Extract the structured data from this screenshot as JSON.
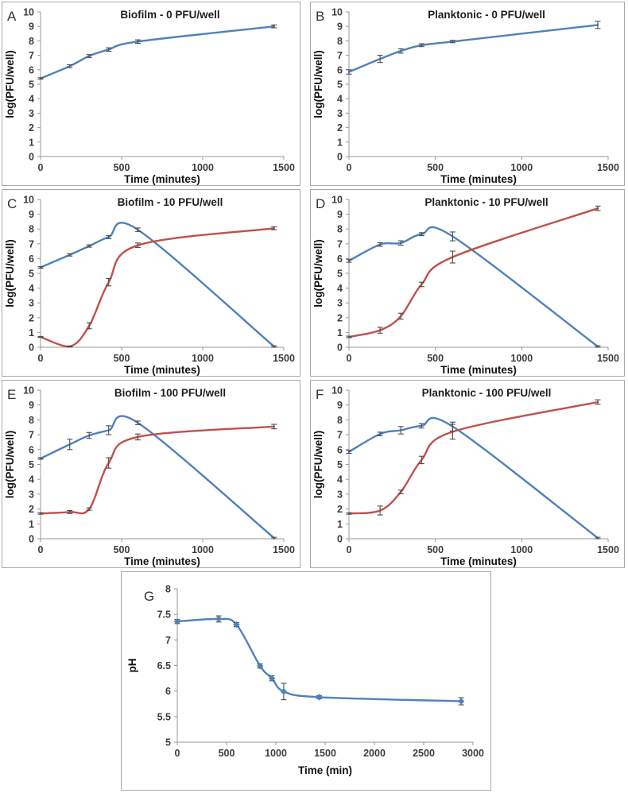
{
  "figure": {
    "background": "#ffffff",
    "panel_border_color": "#a9a9a9",
    "axis_color": "#999999",
    "tick_label_color": "#3d3d3d",
    "title_color": "#1f1f1f",
    "error_bar_color": "#4a4a4a",
    "series_colors": {
      "bacteria": "#4F81BD",
      "phage": "#C0504D"
    }
  },
  "chart_data": [
    {
      "id": "A",
      "panel_letter": "A",
      "type": "line",
      "title": "Biofilm - 0 PFU/well",
      "xlabel": "Time (minutes)",
      "ylabel": "log(PFU/well)",
      "xlim": [
        0,
        1500
      ],
      "ylim": [
        0,
        10
      ],
      "xticks": [
        0,
        500,
        1000,
        1500
      ],
      "yticks": [
        0,
        1,
        2,
        3,
        4,
        5,
        6,
        7,
        8,
        9,
        10
      ],
      "grid": false,
      "legend": "none",
      "series": [
        {
          "name": "bacteria",
          "color": "#4F81BD",
          "marker": "none",
          "x": [
            0,
            180,
            300,
            420,
            600,
            1440
          ],
          "y": [
            5.4,
            6.25,
            6.95,
            7.4,
            7.95,
            9.0
          ],
          "yerr": [
            0.05,
            0.1,
            0.1,
            0.12,
            0.12,
            0.1
          ]
        }
      ]
    },
    {
      "id": "B",
      "panel_letter": "B",
      "type": "line",
      "title": "Planktonic - 0 PFU/well",
      "xlabel": "Time (minutes)",
      "ylabel": "log(PFU/well)",
      "xlim": [
        0,
        1500
      ],
      "ylim": [
        0,
        10
      ],
      "xticks": [
        0,
        500,
        1000,
        1500
      ],
      "yticks": [
        0,
        1,
        2,
        3,
        4,
        5,
        6,
        7,
        8,
        9,
        10
      ],
      "grid": false,
      "legend": "none",
      "series": [
        {
          "name": "bacteria",
          "color": "#4F81BD",
          "marker": "none",
          "x": [
            0,
            180,
            300,
            420,
            600,
            1440
          ],
          "y": [
            5.85,
            6.75,
            7.3,
            7.7,
            7.95,
            9.1
          ],
          "yerr": [
            0.15,
            0.25,
            0.15,
            0.1,
            0.08,
            0.25
          ]
        }
      ]
    },
    {
      "id": "C",
      "panel_letter": "C",
      "type": "line",
      "title": "Biofilm - 10 PFU/well",
      "xlabel": "Time (minutes)",
      "ylabel": "log(PFU/well)",
      "xlim": [
        0,
        1500
      ],
      "ylim": [
        0,
        10
      ],
      "xticks": [
        0,
        500,
        1000,
        1500
      ],
      "yticks": [
        0,
        1,
        2,
        3,
        4,
        5,
        6,
        7,
        8,
        9,
        10
      ],
      "grid": false,
      "legend": "none",
      "series": [
        {
          "name": "bacteria",
          "color": "#4F81BD",
          "marker": "none",
          "x": [
            0,
            180,
            300,
            420,
            600,
            1440
          ],
          "y": [
            5.4,
            6.25,
            6.85,
            7.45,
            7.95,
            0.05
          ],
          "yerr": [
            0.05,
            0.08,
            0.08,
            0.1,
            0.12,
            0.05
          ]
        },
        {
          "name": "phage",
          "color": "#C0504D",
          "marker": "none",
          "x": [
            0,
            180,
            300,
            420,
            600,
            1440
          ],
          "y": [
            0.7,
            0.05,
            1.45,
            4.4,
            6.9,
            8.05
          ],
          "yerr": [
            0.03,
            0.03,
            0.2,
            0.25,
            0.15,
            0.1
          ]
        }
      ]
    },
    {
      "id": "D",
      "panel_letter": "D",
      "type": "line",
      "title": "Planktonic - 10 PFU/well",
      "xlabel": "Time (minutes)",
      "ylabel": "log(PFU/well)",
      "xlim": [
        0,
        1500
      ],
      "ylim": [
        0,
        10
      ],
      "xticks": [
        0,
        500,
        1000,
        1500
      ],
      "yticks": [
        0,
        1,
        2,
        3,
        4,
        5,
        6,
        7,
        8,
        9,
        10
      ],
      "grid": false,
      "legend": "none",
      "series": [
        {
          "name": "bacteria",
          "color": "#4F81BD",
          "marker": "none",
          "x": [
            0,
            180,
            300,
            420,
            600,
            1440
          ],
          "y": [
            5.85,
            6.95,
            7.05,
            7.65,
            7.5,
            0.05
          ],
          "yerr": [
            0.1,
            0.12,
            0.15,
            0.1,
            0.3,
            0.05
          ]
        },
        {
          "name": "phage",
          "color": "#C0504D",
          "marker": "none",
          "x": [
            0,
            180,
            300,
            420,
            600,
            1440
          ],
          "y": [
            0.7,
            1.15,
            2.1,
            4.25,
            6.1,
            9.4
          ],
          "yerr": [
            0.05,
            0.2,
            0.2,
            0.15,
            0.4,
            0.15
          ]
        }
      ]
    },
    {
      "id": "E",
      "panel_letter": "E",
      "type": "line",
      "title": "Biofilm - 100 PFU/well",
      "xlabel": "Time (minutes)",
      "ylabel": "log(PFU/well)",
      "xlim": [
        0,
        1500
      ],
      "ylim": [
        0,
        10
      ],
      "xticks": [
        0,
        500,
        1000,
        1500
      ],
      "yticks": [
        0,
        1,
        2,
        3,
        4,
        5,
        6,
        7,
        8,
        9,
        10
      ],
      "grid": false,
      "legend": "none",
      "series": [
        {
          "name": "bacteria",
          "color": "#4F81BD",
          "marker": "none",
          "x": [
            0,
            180,
            300,
            420,
            600,
            1440
          ],
          "y": [
            5.4,
            6.35,
            6.95,
            7.3,
            7.8,
            0.05
          ],
          "yerr": [
            0.05,
            0.35,
            0.2,
            0.3,
            0.12,
            0.05
          ]
        },
        {
          "name": "phage",
          "color": "#C0504D",
          "marker": "none",
          "x": [
            0,
            180,
            300,
            420,
            600,
            1440
          ],
          "y": [
            1.7,
            1.8,
            2.0,
            5.1,
            6.85,
            7.55
          ],
          "yerr": [
            0.05,
            0.1,
            0.08,
            0.35,
            0.2,
            0.15
          ]
        }
      ]
    },
    {
      "id": "F",
      "panel_letter": "F",
      "type": "line",
      "title": "Planktonic - 100 PFU/well",
      "xlabel": "Time (minutes)",
      "ylabel": "log(PFU/well)",
      "xlim": [
        0,
        1500
      ],
      "ylim": [
        0,
        10
      ],
      "xticks": [
        0,
        500,
        1000,
        1500
      ],
      "yticks": [
        0,
        1,
        2,
        3,
        4,
        5,
        6,
        7,
        8,
        9,
        10
      ],
      "grid": false,
      "legend": "none",
      "series": [
        {
          "name": "bacteria",
          "color": "#4F81BD",
          "marker": "none",
          "x": [
            0,
            180,
            300,
            420,
            600,
            1440
          ],
          "y": [
            5.85,
            7.05,
            7.3,
            7.6,
            7.55,
            0.05
          ],
          "yerr": [
            0.1,
            0.12,
            0.25,
            0.15,
            0.3,
            0.05
          ]
        },
        {
          "name": "phage",
          "color": "#C0504D",
          "marker": "none",
          "x": [
            0,
            180,
            300,
            420,
            600,
            1440
          ],
          "y": [
            1.7,
            1.9,
            3.15,
            5.3,
            7.2,
            9.2
          ],
          "yerr": [
            0.05,
            0.3,
            0.12,
            0.25,
            0.5,
            0.15
          ]
        }
      ]
    },
    {
      "id": "G",
      "panel_letter": "G",
      "type": "line",
      "title": "",
      "xlabel": "Time (min)",
      "ylabel": "pH",
      "xlim": [
        0,
        3000
      ],
      "ylim": [
        5,
        8
      ],
      "xticks": [
        0,
        500,
        1000,
        1500,
        2000,
        2500,
        3000
      ],
      "yticks": [
        5,
        5.5,
        6,
        6.5,
        7,
        7.5,
        8
      ],
      "grid": false,
      "legend": "none",
      "series": [
        {
          "name": "pH",
          "color": "#4F81BD",
          "marker": "diamond",
          "x": [
            0,
            420,
            600,
            840,
            960,
            1080,
            1440,
            2880
          ],
          "y": [
            7.36,
            7.41,
            7.3,
            6.49,
            6.25,
            5.99,
            5.88,
            5.8
          ],
          "yerr": [
            0.04,
            0.06,
            0.04,
            0.04,
            0.05,
            0.16,
            0.03,
            0.07
          ]
        }
      ]
    }
  ]
}
